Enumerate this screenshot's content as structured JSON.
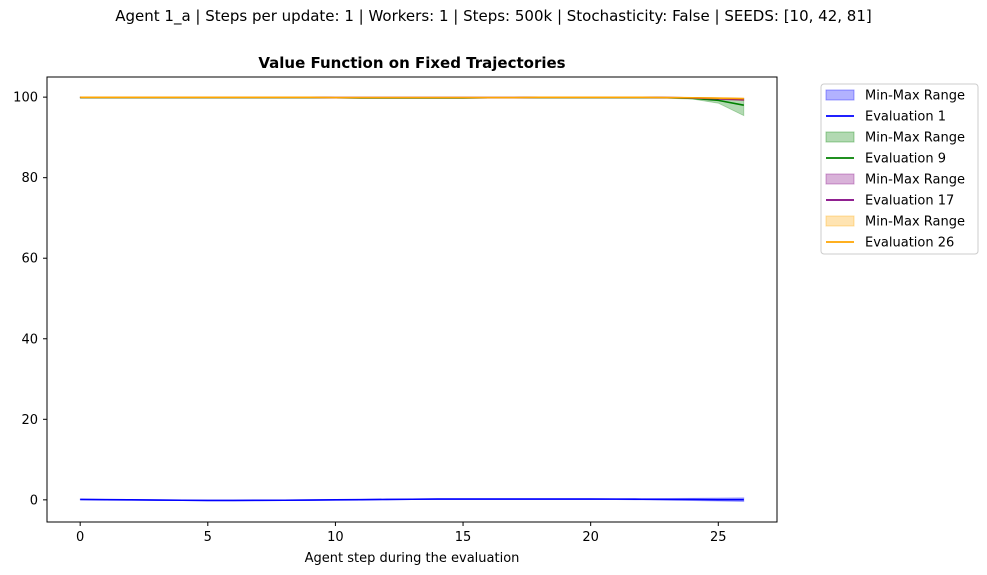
{
  "figure": {
    "suptitle": "Agent 1_a | Steps per update: 1 | Workers: 1 | Steps: 500k | Stochasticity: False | SEEDS: [10, 42, 81]"
  },
  "chart_data": {
    "type": "line",
    "title": "Value Function on Fixed Trajectories",
    "xlabel": "Agent step during the evaluation",
    "ylabel": "",
    "xlim": [
      -1.3,
      27.3
    ],
    "ylim": [
      -5.5,
      105
    ],
    "xticks": [
      0,
      5,
      10,
      15,
      20,
      25
    ],
    "yticks": [
      0,
      20,
      40,
      60,
      80,
      100
    ],
    "grid": false,
    "legend_position": "outside upper right",
    "x": [
      0,
      1,
      2,
      3,
      4,
      5,
      6,
      7,
      8,
      9,
      10,
      11,
      12,
      13,
      14,
      15,
      16,
      17,
      18,
      19,
      20,
      21,
      22,
      23,
      24,
      25,
      26
    ],
    "series": [
      {
        "name": "Evaluation 1",
        "color": "#0000ff",
        "band_label": "Min-Max Range",
        "values": [
          0.1,
          0.05,
          0,
          -0.05,
          -0.1,
          -0.15,
          -0.15,
          -0.12,
          -0.1,
          -0.05,
          0,
          0.05,
          0.1,
          0.15,
          0.2,
          0.2,
          0.2,
          0.2,
          0.2,
          0.2,
          0.2,
          0.18,
          0.15,
          0.12,
          0.1,
          0.05,
          0.05
        ],
        "min": [
          0,
          -0.05,
          -0.1,
          -0.15,
          -0.2,
          -0.25,
          -0.25,
          -0.22,
          -0.2,
          -0.15,
          -0.1,
          -0.05,
          0,
          0.05,
          0.1,
          0.1,
          0.1,
          0.1,
          0.1,
          0.1,
          0.1,
          0.05,
          0,
          -0.1,
          -0.2,
          -0.3,
          -0.4
        ],
        "max": [
          0.2,
          0.15,
          0.1,
          0.05,
          0,
          -0.05,
          -0.05,
          -0.02,
          0,
          0.05,
          0.1,
          0.15,
          0.2,
          0.25,
          0.3,
          0.3,
          0.3,
          0.3,
          0.3,
          0.3,
          0.3,
          0.3,
          0.3,
          0.35,
          0.4,
          0.45,
          0.5
        ]
      },
      {
        "name": "Evaluation 9",
        "color": "#008000",
        "band_label": "Min-Max Range",
        "values": [
          99.9,
          99.9,
          99.9,
          99.9,
          99.9,
          99.9,
          99.9,
          99.9,
          99.9,
          99.9,
          99.85,
          99.8,
          99.8,
          99.8,
          99.8,
          99.8,
          99.85,
          99.85,
          99.9,
          99.9,
          99.9,
          99.9,
          99.9,
          99.85,
          99.7,
          99.2,
          98.0
        ],
        "min": [
          99.8,
          99.8,
          99.8,
          99.8,
          99.8,
          99.8,
          99.8,
          99.8,
          99.8,
          99.8,
          99.75,
          99.7,
          99.7,
          99.7,
          99.7,
          99.7,
          99.75,
          99.75,
          99.8,
          99.8,
          99.8,
          99.8,
          99.8,
          99.7,
          99.5,
          98.5,
          95.4
        ],
        "max": [
          100,
          100,
          100,
          100,
          100,
          100,
          100,
          100,
          100,
          100,
          99.95,
          99.9,
          99.9,
          99.9,
          99.9,
          99.9,
          99.95,
          99.95,
          100,
          100,
          100,
          100,
          100,
          99.95,
          99.9,
          99.8,
          99.6
        ]
      },
      {
        "name": "Evaluation 17",
        "color": "#800080",
        "band_label": "Min-Max Range",
        "values": [
          99.95,
          99.95,
          99.95,
          99.95,
          99.95,
          99.95,
          99.95,
          99.95,
          99.95,
          99.95,
          99.9,
          99.9,
          99.9,
          99.9,
          99.9,
          99.9,
          99.9,
          99.9,
          99.95,
          99.95,
          99.95,
          99.95,
          99.95,
          99.9,
          99.8,
          99.6,
          99.4
        ],
        "min": [
          99.9,
          99.9,
          99.9,
          99.9,
          99.9,
          99.9,
          99.9,
          99.9,
          99.9,
          99.9,
          99.85,
          99.85,
          99.85,
          99.85,
          99.85,
          99.85,
          99.85,
          99.85,
          99.9,
          99.9,
          99.9,
          99.9,
          99.9,
          99.85,
          99.7,
          99.4,
          99.1
        ],
        "max": [
          100,
          100,
          100,
          100,
          100,
          100,
          100,
          100,
          100,
          100,
          99.95,
          99.95,
          99.95,
          99.95,
          99.95,
          99.95,
          99.95,
          99.95,
          100,
          100,
          100,
          100,
          100,
          99.95,
          99.9,
          99.8,
          99.7
        ]
      },
      {
        "name": "Evaluation 26",
        "color": "#ffa500",
        "band_label": "Min-Max Range",
        "values": [
          99.95,
          99.95,
          99.95,
          99.95,
          99.95,
          99.95,
          99.95,
          99.95,
          99.95,
          99.95,
          99.9,
          99.9,
          99.9,
          99.9,
          99.9,
          99.9,
          99.9,
          99.9,
          99.95,
          99.95,
          99.95,
          99.95,
          99.95,
          99.9,
          99.85,
          99.75,
          99.6
        ],
        "min": [
          99.85,
          99.85,
          99.85,
          99.85,
          99.85,
          99.85,
          99.85,
          99.85,
          99.85,
          99.85,
          99.8,
          99.8,
          99.8,
          99.8,
          99.8,
          99.8,
          99.8,
          99.8,
          99.85,
          99.85,
          99.85,
          99.85,
          99.85,
          99.8,
          99.7,
          99.5,
          99.2
        ],
        "max": [
          100.05,
          100.05,
          100.05,
          100.05,
          100.05,
          100.05,
          100.05,
          100.05,
          100.05,
          100.05,
          100,
          100,
          100,
          100,
          100,
          100,
          100,
          100,
          100.05,
          100.05,
          100.05,
          100.05,
          100.05,
          100,
          99.95,
          99.9,
          99.85
        ]
      }
    ]
  }
}
